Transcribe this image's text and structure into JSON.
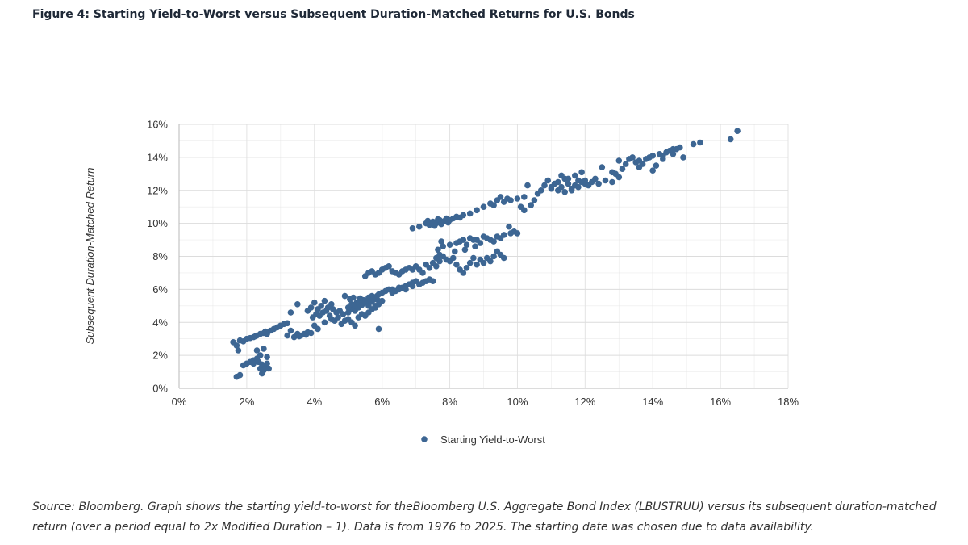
{
  "figure": {
    "title": "Figure 4: Starting Yield-to-Worst versus Subsequent Duration-Matched Returns for U.S. Bonds",
    "source": "Source: Bloomberg. Graph shows the starting yield-to-worst for theBloomberg U.S. Aggregate Bond Index (LBUSTRUU) versus its subsequent duration-matched return (over a period equal to 2x Modified Duration – 1). Data is from 1976 to 2025. The starting date was chosen due to data availability."
  },
  "colors": {
    "marker": "#3d6693",
    "grid": "#e3e3e3",
    "axis": "#b8b8b8"
  },
  "chart_data": {
    "type": "scatter",
    "title": "",
    "xlabel": "",
    "ylabel": "Subsequent Duration-Matched Return",
    "xlim": [
      0,
      18
    ],
    "ylim": [
      0,
      16
    ],
    "x_ticks": [
      "0%",
      "2%",
      "4%",
      "6%",
      "8%",
      "10%",
      "12%",
      "14%",
      "16%",
      "18%"
    ],
    "y_ticks": [
      "0%",
      "2%",
      "4%",
      "6%",
      "8%",
      "10%",
      "12%",
      "14%",
      "16%"
    ],
    "grid": true,
    "legend": {
      "placement": "bottom",
      "entries": [
        "Starting Yield-to-Worst"
      ]
    },
    "series": [
      {
        "name": "Starting Yield-to-Worst",
        "points": [
          [
            1.6,
            2.8
          ],
          [
            1.7,
            2.6
          ],
          [
            1.75,
            2.3
          ],
          [
            1.8,
            2.9
          ],
          [
            1.9,
            2.85
          ],
          [
            2.0,
            3.0
          ],
          [
            2.1,
            3.05
          ],
          [
            2.2,
            3.1
          ],
          [
            2.3,
            3.2
          ],
          [
            2.4,
            3.3
          ],
          [
            2.5,
            3.35
          ],
          [
            2.6,
            3.3
          ],
          [
            2.7,
            3.5
          ],
          [
            2.8,
            3.6
          ],
          [
            2.9,
            3.7
          ],
          [
            3.0,
            3.8
          ],
          [
            3.1,
            3.9
          ],
          [
            3.2,
            3.95
          ],
          [
            2.25,
            3.15
          ],
          [
            2.55,
            3.45
          ],
          [
            1.7,
            0.7
          ],
          [
            1.8,
            0.8
          ],
          [
            1.9,
            1.4
          ],
          [
            2.0,
            1.5
          ],
          [
            2.1,
            1.6
          ],
          [
            2.2,
            1.7
          ],
          [
            2.3,
            1.8
          ],
          [
            2.35,
            1.6
          ],
          [
            2.4,
            1.2
          ],
          [
            2.45,
            0.9
          ],
          [
            2.5,
            1.1
          ],
          [
            2.55,
            1.3
          ],
          [
            2.6,
            1.5
          ],
          [
            2.65,
            1.2
          ],
          [
            2.3,
            2.3
          ],
          [
            2.4,
            2.0
          ],
          [
            2.5,
            2.4
          ],
          [
            2.6,
            1.9
          ],
          [
            2.2,
            1.5
          ],
          [
            2.45,
            1.45
          ],
          [
            3.2,
            3.2
          ],
          [
            3.4,
            3.1
          ],
          [
            3.5,
            3.3
          ],
          [
            3.6,
            3.2
          ],
          [
            3.7,
            3.3
          ],
          [
            3.8,
            3.4
          ],
          [
            3.3,
            3.5
          ],
          [
            3.55,
            3.15
          ],
          [
            3.75,
            3.25
          ],
          [
            3.9,
            3.35
          ],
          [
            3.3,
            4.6
          ],
          [
            3.5,
            5.1
          ],
          [
            3.8,
            4.7
          ],
          [
            3.9,
            4.9
          ],
          [
            4.0,
            5.2
          ],
          [
            4.1,
            4.8
          ],
          [
            4.2,
            5.0
          ],
          [
            4.3,
            5.3
          ],
          [
            4.4,
            4.9
          ],
          [
            4.5,
            5.1
          ],
          [
            3.95,
            4.3
          ],
          [
            4.05,
            4.5
          ],
          [
            4.15,
            4.4
          ],
          [
            4.25,
            4.6
          ],
          [
            4.35,
            4.7
          ],
          [
            4.45,
            4.4
          ],
          [
            4.55,
            4.8
          ],
          [
            4.65,
            4.6
          ],
          [
            4.75,
            4.7
          ],
          [
            4.85,
            4.5
          ],
          [
            4.0,
            3.8
          ],
          [
            4.1,
            3.6
          ],
          [
            4.3,
            4.0
          ],
          [
            4.5,
            4.2
          ],
          [
            4.6,
            4.1
          ],
          [
            4.7,
            4.3
          ],
          [
            4.8,
            3.9
          ],
          [
            4.9,
            4.1
          ],
          [
            5.0,
            4.2
          ],
          [
            5.1,
            4.0
          ],
          [
            5.2,
            3.8
          ],
          [
            5.0,
            4.6
          ],
          [
            5.1,
            4.8
          ],
          [
            5.2,
            4.7
          ],
          [
            5.3,
            4.9
          ],
          [
            5.4,
            5.2
          ],
          [
            5.5,
            5.3
          ],
          [
            5.6,
            5.5
          ],
          [
            5.7,
            5.6
          ],
          [
            5.8,
            5.4
          ],
          [
            5.9,
            5.7
          ],
          [
            5.3,
            4.3
          ],
          [
            5.4,
            4.5
          ],
          [
            5.5,
            4.4
          ],
          [
            5.6,
            4.6
          ],
          [
            5.7,
            4.8
          ],
          [
            5.8,
            5.0
          ],
          [
            5.9,
            5.1
          ],
          [
            6.0,
            5.3
          ],
          [
            5.9,
            3.6
          ],
          [
            4.9,
            5.6
          ],
          [
            5.05,
            5.4
          ],
          [
            5.15,
            5.5
          ],
          [
            5.25,
            5.2
          ],
          [
            5.35,
            5.45
          ],
          [
            5.45,
            5.35
          ],
          [
            5.55,
            5.25
          ],
          [
            5.65,
            5.35
          ],
          [
            5.75,
            5.5
          ],
          [
            5.85,
            5.6
          ],
          [
            5.0,
            4.9
          ],
          [
            5.1,
            5.1
          ],
          [
            5.2,
            5.0
          ],
          [
            5.3,
            5.15
          ],
          [
            5.4,
            5.05
          ],
          [
            5.5,
            5.2
          ],
          [
            5.6,
            5.0
          ],
          [
            5.7,
            5.25
          ],
          [
            5.8,
            4.9
          ],
          [
            5.9,
            5.3
          ],
          [
            6.0,
            5.8
          ],
          [
            6.1,
            5.9
          ],
          [
            6.2,
            6.0
          ],
          [
            6.3,
            5.8
          ],
          [
            6.4,
            5.9
          ],
          [
            6.5,
            6.0
          ],
          [
            6.6,
            6.1
          ],
          [
            6.7,
            6.2
          ],
          [
            6.8,
            6.3
          ],
          [
            6.9,
            6.4
          ],
          [
            7.0,
            6.5
          ],
          [
            7.1,
            6.3
          ],
          [
            7.2,
            6.4
          ],
          [
            7.3,
            6.5
          ],
          [
            7.4,
            6.6
          ],
          [
            7.5,
            6.5
          ],
          [
            6.3,
            6.0
          ],
          [
            6.5,
            6.1
          ],
          [
            6.7,
            6.0
          ],
          [
            6.9,
            6.2
          ],
          [
            5.5,
            6.8
          ],
          [
            5.6,
            7.0
          ],
          [
            5.7,
            7.1
          ],
          [
            5.8,
            6.9
          ],
          [
            5.9,
            7.0
          ],
          [
            6.0,
            7.2
          ],
          [
            6.1,
            7.3
          ],
          [
            6.2,
            7.4
          ],
          [
            6.3,
            7.1
          ],
          [
            6.4,
            7.0
          ],
          [
            6.5,
            6.9
          ],
          [
            6.6,
            7.1
          ],
          [
            6.7,
            7.2
          ],
          [
            6.8,
            7.3
          ],
          [
            6.9,
            7.2
          ],
          [
            7.0,
            7.4
          ],
          [
            7.1,
            7.2
          ],
          [
            7.2,
            7.0
          ],
          [
            7.3,
            7.5
          ],
          [
            7.4,
            7.3
          ],
          [
            7.5,
            7.6
          ],
          [
            7.6,
            7.9
          ],
          [
            7.65,
            8.4
          ],
          [
            7.7,
            8.1
          ],
          [
            7.75,
            8.9
          ],
          [
            7.8,
            8.6
          ],
          [
            7.6,
            7.4
          ],
          [
            7.7,
            7.7
          ],
          [
            7.8,
            8.0
          ],
          [
            7.9,
            7.8
          ],
          [
            8.0,
            7.7
          ],
          [
            8.1,
            7.9
          ],
          [
            8.2,
            7.5
          ],
          [
            8.3,
            7.2
          ],
          [
            8.4,
            7.0
          ],
          [
            8.5,
            7.3
          ],
          [
            8.6,
            7.6
          ],
          [
            8.7,
            7.9
          ],
          [
            8.8,
            7.5
          ],
          [
            8.9,
            7.8
          ],
          [
            9.0,
            7.6
          ],
          [
            9.1,
            7.9
          ],
          [
            9.2,
            7.7
          ],
          [
            9.3,
            8.0
          ],
          [
            9.4,
            8.3
          ],
          [
            9.5,
            8.1
          ],
          [
            9.6,
            7.9
          ],
          [
            8.15,
            8.3
          ],
          [
            8.45,
            8.4
          ],
          [
            8.75,
            8.6
          ],
          [
            8.0,
            8.7
          ],
          [
            8.2,
            8.8
          ],
          [
            8.4,
            9.0
          ],
          [
            8.6,
            9.1
          ],
          [
            8.8,
            9.0
          ],
          [
            9.0,
            9.2
          ],
          [
            9.2,
            9.0
          ],
          [
            9.4,
            9.2
          ],
          [
            9.6,
            9.3
          ],
          [
            9.8,
            9.4
          ],
          [
            9.9,
            9.5
          ],
          [
            10.0,
            9.4
          ],
          [
            9.75,
            9.8
          ],
          [
            8.3,
            8.9
          ],
          [
            8.5,
            8.7
          ],
          [
            8.7,
            9.0
          ],
          [
            8.9,
            8.8
          ],
          [
            9.1,
            9.1
          ],
          [
            9.3,
            8.9
          ],
          [
            9.5,
            9.1
          ],
          [
            6.9,
            9.7
          ],
          [
            7.1,
            9.8
          ],
          [
            7.3,
            10.0
          ],
          [
            7.4,
            9.9
          ],
          [
            7.5,
            10.1
          ],
          [
            7.6,
            10.0
          ],
          [
            7.7,
            10.2
          ],
          [
            7.8,
            10.1
          ],
          [
            7.9,
            10.3
          ],
          [
            8.0,
            10.2
          ],
          [
            8.2,
            10.4
          ],
          [
            8.4,
            10.5
          ],
          [
            7.35,
            10.15
          ],
          [
            7.55,
            9.85
          ],
          [
            7.65,
            10.25
          ],
          [
            7.75,
            9.95
          ],
          [
            7.85,
            10.15
          ],
          [
            7.95,
            10.05
          ],
          [
            8.1,
            10.3
          ],
          [
            8.3,
            10.35
          ],
          [
            8.6,
            10.6
          ],
          [
            8.8,
            10.8
          ],
          [
            9.0,
            11.0
          ],
          [
            9.2,
            11.2
          ],
          [
            9.3,
            11.1
          ],
          [
            9.4,
            11.4
          ],
          [
            9.5,
            11.6
          ],
          [
            9.6,
            11.3
          ],
          [
            9.7,
            11.5
          ],
          [
            9.8,
            11.4
          ],
          [
            10.0,
            11.5
          ],
          [
            10.2,
            11.6
          ],
          [
            10.3,
            12.3
          ],
          [
            10.1,
            11.0
          ],
          [
            10.2,
            10.8
          ],
          [
            10.4,
            11.1
          ],
          [
            10.5,
            11.4
          ],
          [
            10.6,
            11.8
          ],
          [
            10.7,
            12.0
          ],
          [
            10.8,
            12.3
          ],
          [
            10.9,
            12.6
          ],
          [
            11.0,
            12.1
          ],
          [
            11.1,
            12.4
          ],
          [
            11.2,
            12.5
          ],
          [
            11.3,
            12.2
          ],
          [
            11.4,
            12.7
          ],
          [
            11.5,
            12.4
          ],
          [
            11.6,
            12.0
          ],
          [
            11.7,
            12.3
          ],
          [
            11.8,
            12.6
          ],
          [
            11.9,
            12.5
          ],
          [
            12.0,
            12.4
          ],
          [
            11.0,
            12.2
          ],
          [
            11.2,
            12.0
          ],
          [
            11.4,
            11.9
          ],
          [
            11.6,
            12.1
          ],
          [
            11.8,
            12.2
          ],
          [
            12.0,
            12.6
          ],
          [
            12.2,
            12.5
          ],
          [
            12.4,
            12.4
          ],
          [
            11.3,
            12.9
          ],
          [
            11.5,
            12.7
          ],
          [
            11.7,
            12.9
          ],
          [
            11.9,
            13.1
          ],
          [
            12.5,
            13.4
          ],
          [
            12.1,
            12.3
          ],
          [
            12.3,
            12.7
          ],
          [
            12.6,
            12.6
          ],
          [
            12.8,
            12.5
          ],
          [
            12.9,
            13.0
          ],
          [
            13.0,
            12.8
          ],
          [
            13.1,
            13.3
          ],
          [
            13.2,
            13.6
          ],
          [
            13.3,
            13.9
          ],
          [
            13.4,
            14.0
          ],
          [
            13.5,
            13.7
          ],
          [
            13.6,
            13.8
          ],
          [
            13.7,
            13.6
          ],
          [
            13.8,
            13.9
          ],
          [
            13.9,
            14.0
          ],
          [
            14.0,
            14.1
          ],
          [
            14.1,
            13.5
          ],
          [
            14.2,
            14.2
          ],
          [
            14.3,
            13.9
          ],
          [
            14.4,
            14.3
          ],
          [
            14.5,
            14.4
          ],
          [
            14.6,
            14.2
          ],
          [
            14.7,
            14.5
          ],
          [
            14.8,
            14.6
          ],
          [
            14.9,
            14.0
          ],
          [
            14.6,
            14.5
          ],
          [
            15.2,
            14.8
          ],
          [
            15.4,
            14.9
          ],
          [
            16.3,
            15.1
          ],
          [
            16.5,
            15.6
          ],
          [
            12.8,
            13.1
          ],
          [
            13.0,
            13.8
          ],
          [
            14.0,
            13.2
          ],
          [
            14.3,
            14.1
          ],
          [
            13.6,
            13.4
          ]
        ]
      }
    ]
  }
}
